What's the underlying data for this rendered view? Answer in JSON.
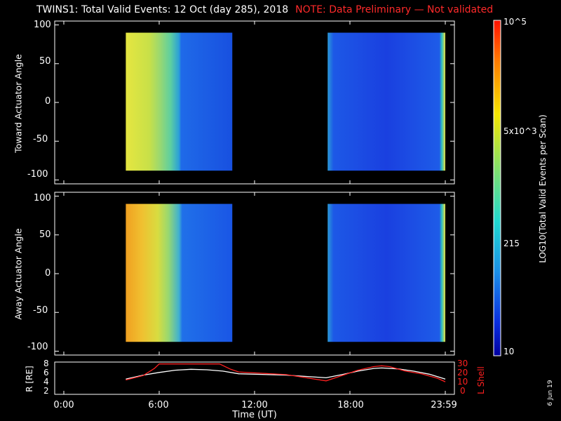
{
  "title": "TWINS1: Total Valid Events: 12 Oct (day 285), 2018",
  "note": "NOTE: Data Preliminary — Not validated",
  "date_stamp": "6 Jun 19",
  "colors": {
    "note": "#ff2a2a",
    "r_line": "#ffffff",
    "lshell_line": "#ff2020",
    "background": "#000000"
  },
  "chart_data": [
    {
      "type": "heatmap",
      "name": "panel-toward",
      "ylabel": "Toward Actuator Angle",
      "ylim": [
        -105,
        105
      ],
      "yticks": [
        100,
        50,
        0,
        -50,
        -100
      ],
      "xlim": [
        0,
        24
      ],
      "data_blocks": [
        {
          "x_start": 3.9,
          "x_end": 10.6,
          "y_start": -88,
          "y_end": 90
        },
        {
          "x_start": 16.6,
          "x_end": 24.0,
          "y_start": -88,
          "y_end": 90
        }
      ],
      "colorscale": "rainbow (log)"
    },
    {
      "type": "heatmap",
      "name": "panel-away",
      "ylabel": "Away Actuator Angle",
      "ylim": [
        -105,
        105
      ],
      "yticks": [
        100,
        50,
        0,
        -50,
        -100
      ],
      "xlim": [
        0,
        24
      ],
      "data_blocks": [
        {
          "x_start": 3.9,
          "x_end": 10.6,
          "y_start": -88,
          "y_end": 90
        },
        {
          "x_start": 16.6,
          "x_end": 24.0,
          "y_start": -88,
          "y_end": 90
        }
      ],
      "colorscale": "rainbow (log)"
    },
    {
      "type": "line",
      "name": "panel-orbit",
      "ylabel": "R [RE]",
      "ylabel_right": "L Shell",
      "xlabel": "Time (UT)",
      "xlim": [
        0,
        24
      ],
      "ylim_left": [
        2,
        8
      ],
      "yticks_left": [
        "8",
        "6",
        "4",
        "2"
      ],
      "ylim_right": [
        0,
        30
      ],
      "yticks_right": [
        "30",
        "20",
        "10",
        "0"
      ],
      "xticks": [
        "0:00",
        "6:00",
        "12:00",
        "18:00",
        "23:59"
      ],
      "xtick_positions": [
        0,
        6,
        12,
        18,
        24
      ],
      "series": [
        {
          "axis": "left",
          "x": [
            3.9,
            5,
            6,
            7,
            8,
            9,
            10,
            11,
            12,
            14,
            16.5,
            17.5,
            18.5,
            19.5,
            20,
            21,
            22,
            23,
            24
          ],
          "y": [
            4.8,
            5.7,
            6.3,
            6.8,
            7.0,
            6.9,
            6.6,
            6.0,
            5.9,
            5.7,
            5.1,
            5.8,
            6.6,
            7.2,
            7.3,
            7.1,
            6.6,
            5.9,
            4.8
          ]
        },
        {
          "axis": "right",
          "x": [
            3.9,
            5,
            5.7,
            6.0,
            9.8,
            10.5,
            11.0,
            12.0,
            14.0,
            16.5,
            17.5,
            18.5,
            19.5,
            20.0,
            20.5,
            21.5,
            22.5,
            23.5,
            24.0
          ],
          "y": [
            13,
            18,
            26,
            31,
            31,
            25,
            22,
            21,
            19,
            12,
            18,
            24,
            28,
            29,
            28,
            23,
            20,
            15,
            11
          ]
        }
      ]
    }
  ],
  "colorbar": {
    "label": "LOG10(Total Valid Events per Scan)",
    "ticks": [
      "10^5",
      "5x10^3",
      "215",
      "10"
    ],
    "tick_values": [
      100000,
      5000,
      215,
      10
    ]
  }
}
